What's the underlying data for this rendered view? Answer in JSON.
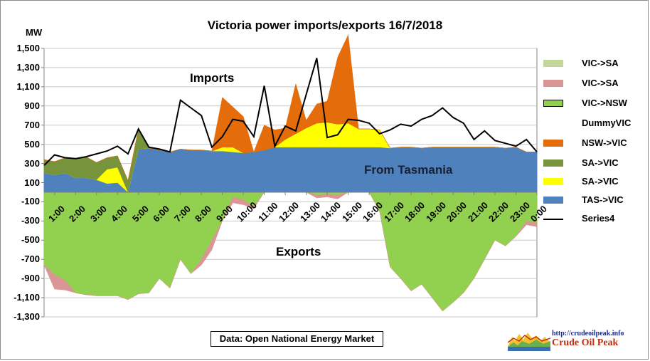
{
  "chart_data": {
    "type": "area",
    "title": "Victoria  power imports/exports  16/7/2018",
    "ylabel": "MW",
    "ylim": [
      -1300,
      1500
    ],
    "yticks": [
      "1,500",
      "1,300",
      "1,100",
      "900",
      "700",
      "500",
      "300",
      "100",
      "-100",
      "-300",
      "-500",
      "-700",
      "-900",
      "-1,100",
      "-1,300"
    ],
    "xtick_labels": [
      "1:00",
      "2:00",
      "3:00",
      "4:00",
      "5:00",
      "6:00",
      "7:00",
      "8:00",
      "9:00",
      "10:00",
      "11:00",
      "12:00",
      "13:00",
      "14:00",
      "15:00",
      "16:00",
      "17:00",
      "18:00",
      "19:00",
      "20:00",
      "21:00",
      "22:00",
      "23:00",
      "0:00"
    ],
    "x_hours": [
      0.5,
      1,
      1.5,
      2,
      2.5,
      3,
      3.5,
      4,
      4.5,
      5,
      5.5,
      6,
      6.5,
      7,
      7.5,
      8,
      8.5,
      9,
      9.5,
      10,
      10.5,
      11,
      11.5,
      12,
      12.5,
      13,
      13.5,
      14,
      14.5,
      15,
      15.5,
      16,
      16.5,
      17,
      17.5,
      18,
      18.5,
      19,
      19.5,
      20,
      20.5,
      21,
      21.5,
      22,
      22.5,
      23,
      23.5,
      24
    ],
    "series": [
      {
        "name": "TAS->VIC",
        "color": "#4f81bd",
        "values": [
          200,
          180,
          200,
          150,
          150,
          130,
          90,
          100,
          0,
          450,
          460,
          440,
          420,
          450,
          440,
          440,
          430,
          430,
          420,
          410,
          420,
          440,
          470,
          470,
          470,
          470,
          470,
          470,
          470,
          470,
          470,
          470,
          470,
          460,
          470,
          470,
          460,
          470,
          470,
          470,
          470,
          470,
          470,
          470,
          460,
          470,
          420,
          420
        ]
      },
      {
        "name": "SA->VIC",
        "color": "#ffff00",
        "values": [
          0,
          0,
          0,
          0,
          0,
          0,
          150,
          160,
          0,
          0,
          0,
          0,
          0,
          0,
          0,
          0,
          0,
          40,
          50,
          0,
          0,
          0,
          0,
          80,
          140,
          200,
          250,
          260,
          240,
          250,
          190,
          190,
          180,
          0,
          0,
          0,
          0,
          0,
          0,
          0,
          0,
          0,
          0,
          0,
          0,
          0,
          0,
          0
        ]
      },
      {
        "name": "SA->VIC",
        "color": "#77933c",
        "values": [
          140,
          140,
          160,
          200,
          220,
          180,
          120,
          120,
          120,
          210,
          0,
          0,
          0,
          0,
          0,
          0,
          0,
          0,
          0,
          0,
          0,
          0,
          0,
          0,
          0,
          0,
          0,
          0,
          0,
          0,
          0,
          0,
          0,
          0,
          0,
          0,
          0,
          0,
          0,
          0,
          0,
          0,
          0,
          0,
          0,
          0,
          0,
          0
        ]
      },
      {
        "name": "NSW->VIC",
        "color": "#e46c0a",
        "values": [
          0,
          0,
          0,
          0,
          0,
          0,
          0,
          0,
          0,
          0,
          0,
          0,
          0,
          0,
          0,
          0,
          0,
          520,
          420,
          380,
          0,
          260,
          180,
          120,
          520,
          80,
          200,
          220,
          700,
          920,
          0,
          0,
          0,
          0,
          0,
          0,
          0,
          0,
          0,
          0,
          0,
          0,
          0,
          0,
          0,
          0,
          0,
          0
        ]
      },
      {
        "name": "VIC->NSW",
        "color": "#92d050",
        "values": [
          -760,
          -860,
          -920,
          -1050,
          -1070,
          -1080,
          -1080,
          -1080,
          -1120,
          -1060,
          -1050,
          -900,
          -1000,
          -700,
          -850,
          -700,
          -500,
          -300,
          -50,
          -80,
          -150,
          0,
          0,
          0,
          0,
          0,
          -30,
          -20,
          -30,
          0,
          0,
          0,
          -200,
          -780,
          -900,
          -1030,
          -960,
          -1100,
          -1240,
          -1150,
          -1050,
          -900,
          -700,
          -500,
          -560,
          -460,
          -300,
          -320
        ]
      },
      {
        "name": "VIC->SA",
        "color": "#d99694",
        "values": [
          0,
          -150,
          -100,
          0,
          0,
          0,
          0,
          0,
          0,
          0,
          0,
          0,
          0,
          0,
          0,
          -60,
          -100,
          0,
          -60,
          -50,
          -20,
          0,
          0,
          0,
          0,
          0,
          -30,
          -30,
          -40,
          0,
          0,
          0,
          0,
          0,
          0,
          0,
          0,
          0,
          0,
          0,
          0,
          0,
          0,
          0,
          0,
          0,
          -40,
          -40
        ]
      },
      {
        "name": "Series4",
        "color": "#000000",
        "values": [
          280,
          390,
          360,
          350,
          370,
          400,
          430,
          480,
          400,
          660,
          470,
          450,
          420,
          960,
          880,
          800,
          470,
          580,
          760,
          740,
          580,
          1110,
          480,
          690,
          640,
          1020,
          1400,
          570,
          600,
          760,
          750,
          720,
          610,
          650,
          710,
          690,
          760,
          800,
          880,
          780,
          720,
          550,
          640,
          540,
          510,
          480,
          550,
          420
        ]
      }
    ],
    "legend": [
      "VIC->SA",
      "VIC->SA",
      "VIC->NSW",
      "DummyVIC",
      "NSW->VIC",
      "SA->VIC",
      "SA->VIC",
      "TAS->VIC",
      "Series4"
    ],
    "annotations": [
      "Imports",
      "From Tasmania",
      "Exports"
    ],
    "source": "Data: Open National Energy Market"
  },
  "logo": {
    "url": "http://crudeoilpeak.info",
    "name": "Crude Oil Peak"
  }
}
